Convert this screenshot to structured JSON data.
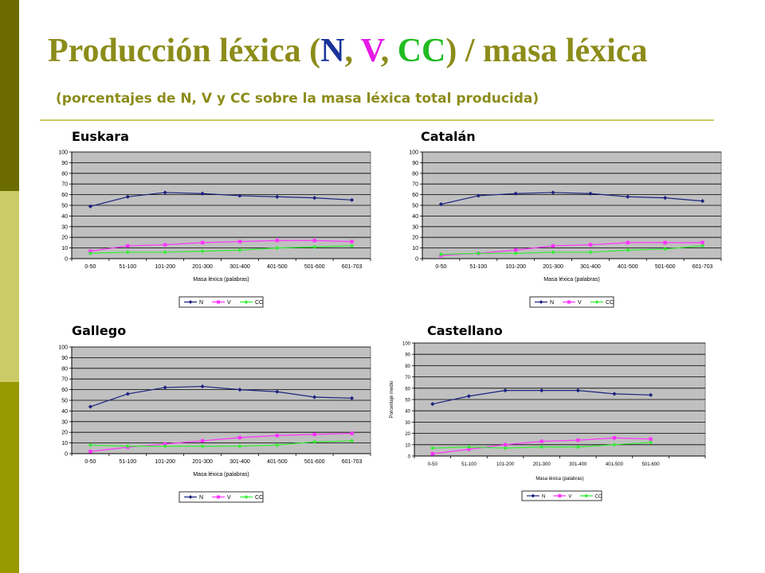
{
  "slide": {
    "title_parts": [
      "Producción léxica (",
      "N",
      ", ",
      "V",
      ", ",
      "CC",
      ") / masa léxica"
    ],
    "subtitle": "(porcentajes de N, V y CC sobre la masa léxica total producida)"
  },
  "colors": {
    "N": "#1a237e",
    "V": "#ff33ff",
    "CC": "#33ee33",
    "plot_bg": "#c0c0c0"
  },
  "chart_data": [
    {
      "type": "line",
      "title": "Euskara",
      "xlabel": "Masa léxica (palabras)",
      "ylabel": "",
      "ylim": [
        0,
        100
      ],
      "yticks": [
        0,
        10,
        20,
        30,
        40,
        50,
        60,
        70,
        80,
        90,
        100
      ],
      "categories": [
        "0-50",
        "51-100",
        "101-200",
        "201-300",
        "301-400",
        "401-500",
        "501-600",
        "601-703"
      ],
      "series": [
        {
          "name": "N",
          "values": [
            49,
            58,
            62,
            61,
            59,
            58,
            57,
            55
          ]
        },
        {
          "name": "V",
          "values": [
            7,
            12,
            13,
            15,
            16,
            17,
            17,
            16
          ]
        },
        {
          "name": "CC",
          "values": [
            5,
            6,
            6,
            7,
            8,
            10,
            11,
            12
          ]
        }
      ],
      "legend": "bottom",
      "grid": true
    },
    {
      "type": "line",
      "title": "Catalán",
      "xlabel": "Masa léxica (palabras)",
      "ylabel": "",
      "ylim": [
        0,
        100
      ],
      "yticks": [
        0,
        10,
        20,
        30,
        40,
        50,
        60,
        70,
        80,
        90,
        100
      ],
      "categories": [
        "0-50",
        "51-100",
        "101-200",
        "201-300",
        "301-400",
        "401-500",
        "501-600",
        "601-703"
      ],
      "series": [
        {
          "name": "N",
          "values": [
            51,
            59,
            61,
            62,
            61,
            58,
            57,
            54
          ]
        },
        {
          "name": "V",
          "values": [
            3,
            5,
            8,
            12,
            13,
            15,
            15,
            15
          ]
        },
        {
          "name": "CC",
          "values": [
            4,
            5,
            5,
            6,
            6,
            8,
            9,
            12
          ]
        }
      ],
      "legend": "bottom",
      "grid": true
    },
    {
      "type": "line",
      "title": "Gallego",
      "xlabel": "Masa léxica (palabras)",
      "ylabel": "",
      "ylim": [
        0,
        100
      ],
      "yticks": [
        0,
        10,
        20,
        30,
        40,
        50,
        60,
        70,
        80,
        90,
        100
      ],
      "categories": [
        "0-50",
        "51-100",
        "101-200",
        "201-300",
        "301-400",
        "401-500",
        "501-600",
        "601-703"
      ],
      "series": [
        {
          "name": "N",
          "values": [
            44,
            56,
            62,
            63,
            60,
            58,
            53,
            52
          ]
        },
        {
          "name": "V",
          "values": [
            2,
            6,
            9,
            12,
            15,
            17,
            18,
            19
          ]
        },
        {
          "name": "CC",
          "values": [
            8,
            7,
            7,
            7,
            7,
            8,
            11,
            12
          ]
        }
      ],
      "legend": "bottom",
      "grid": true
    },
    {
      "type": "line",
      "title": "Castellano",
      "xlabel": "Masa léxica (palabras)",
      "ylabel": "Porcentaje medio",
      "ylim": [
        0,
        100
      ],
      "yticks": [
        0,
        10,
        20,
        30,
        40,
        50,
        60,
        70,
        80,
        90,
        100
      ],
      "categories": [
        "0-50",
        "51-100",
        "101-200",
        "201-300",
        "301-400",
        "401-500",
        "501-600",
        ""
      ],
      "series": [
        {
          "name": "N",
          "values": [
            46,
            53,
            58,
            58,
            58,
            55,
            54,
            null
          ]
        },
        {
          "name": "V",
          "values": [
            2,
            6,
            10,
            13,
            14,
            16,
            15,
            null
          ]
        },
        {
          "name": "CC",
          "values": [
            7,
            8,
            7,
            8,
            8,
            10,
            12,
            null
          ]
        }
      ],
      "legend": "bottom",
      "grid": true
    }
  ]
}
